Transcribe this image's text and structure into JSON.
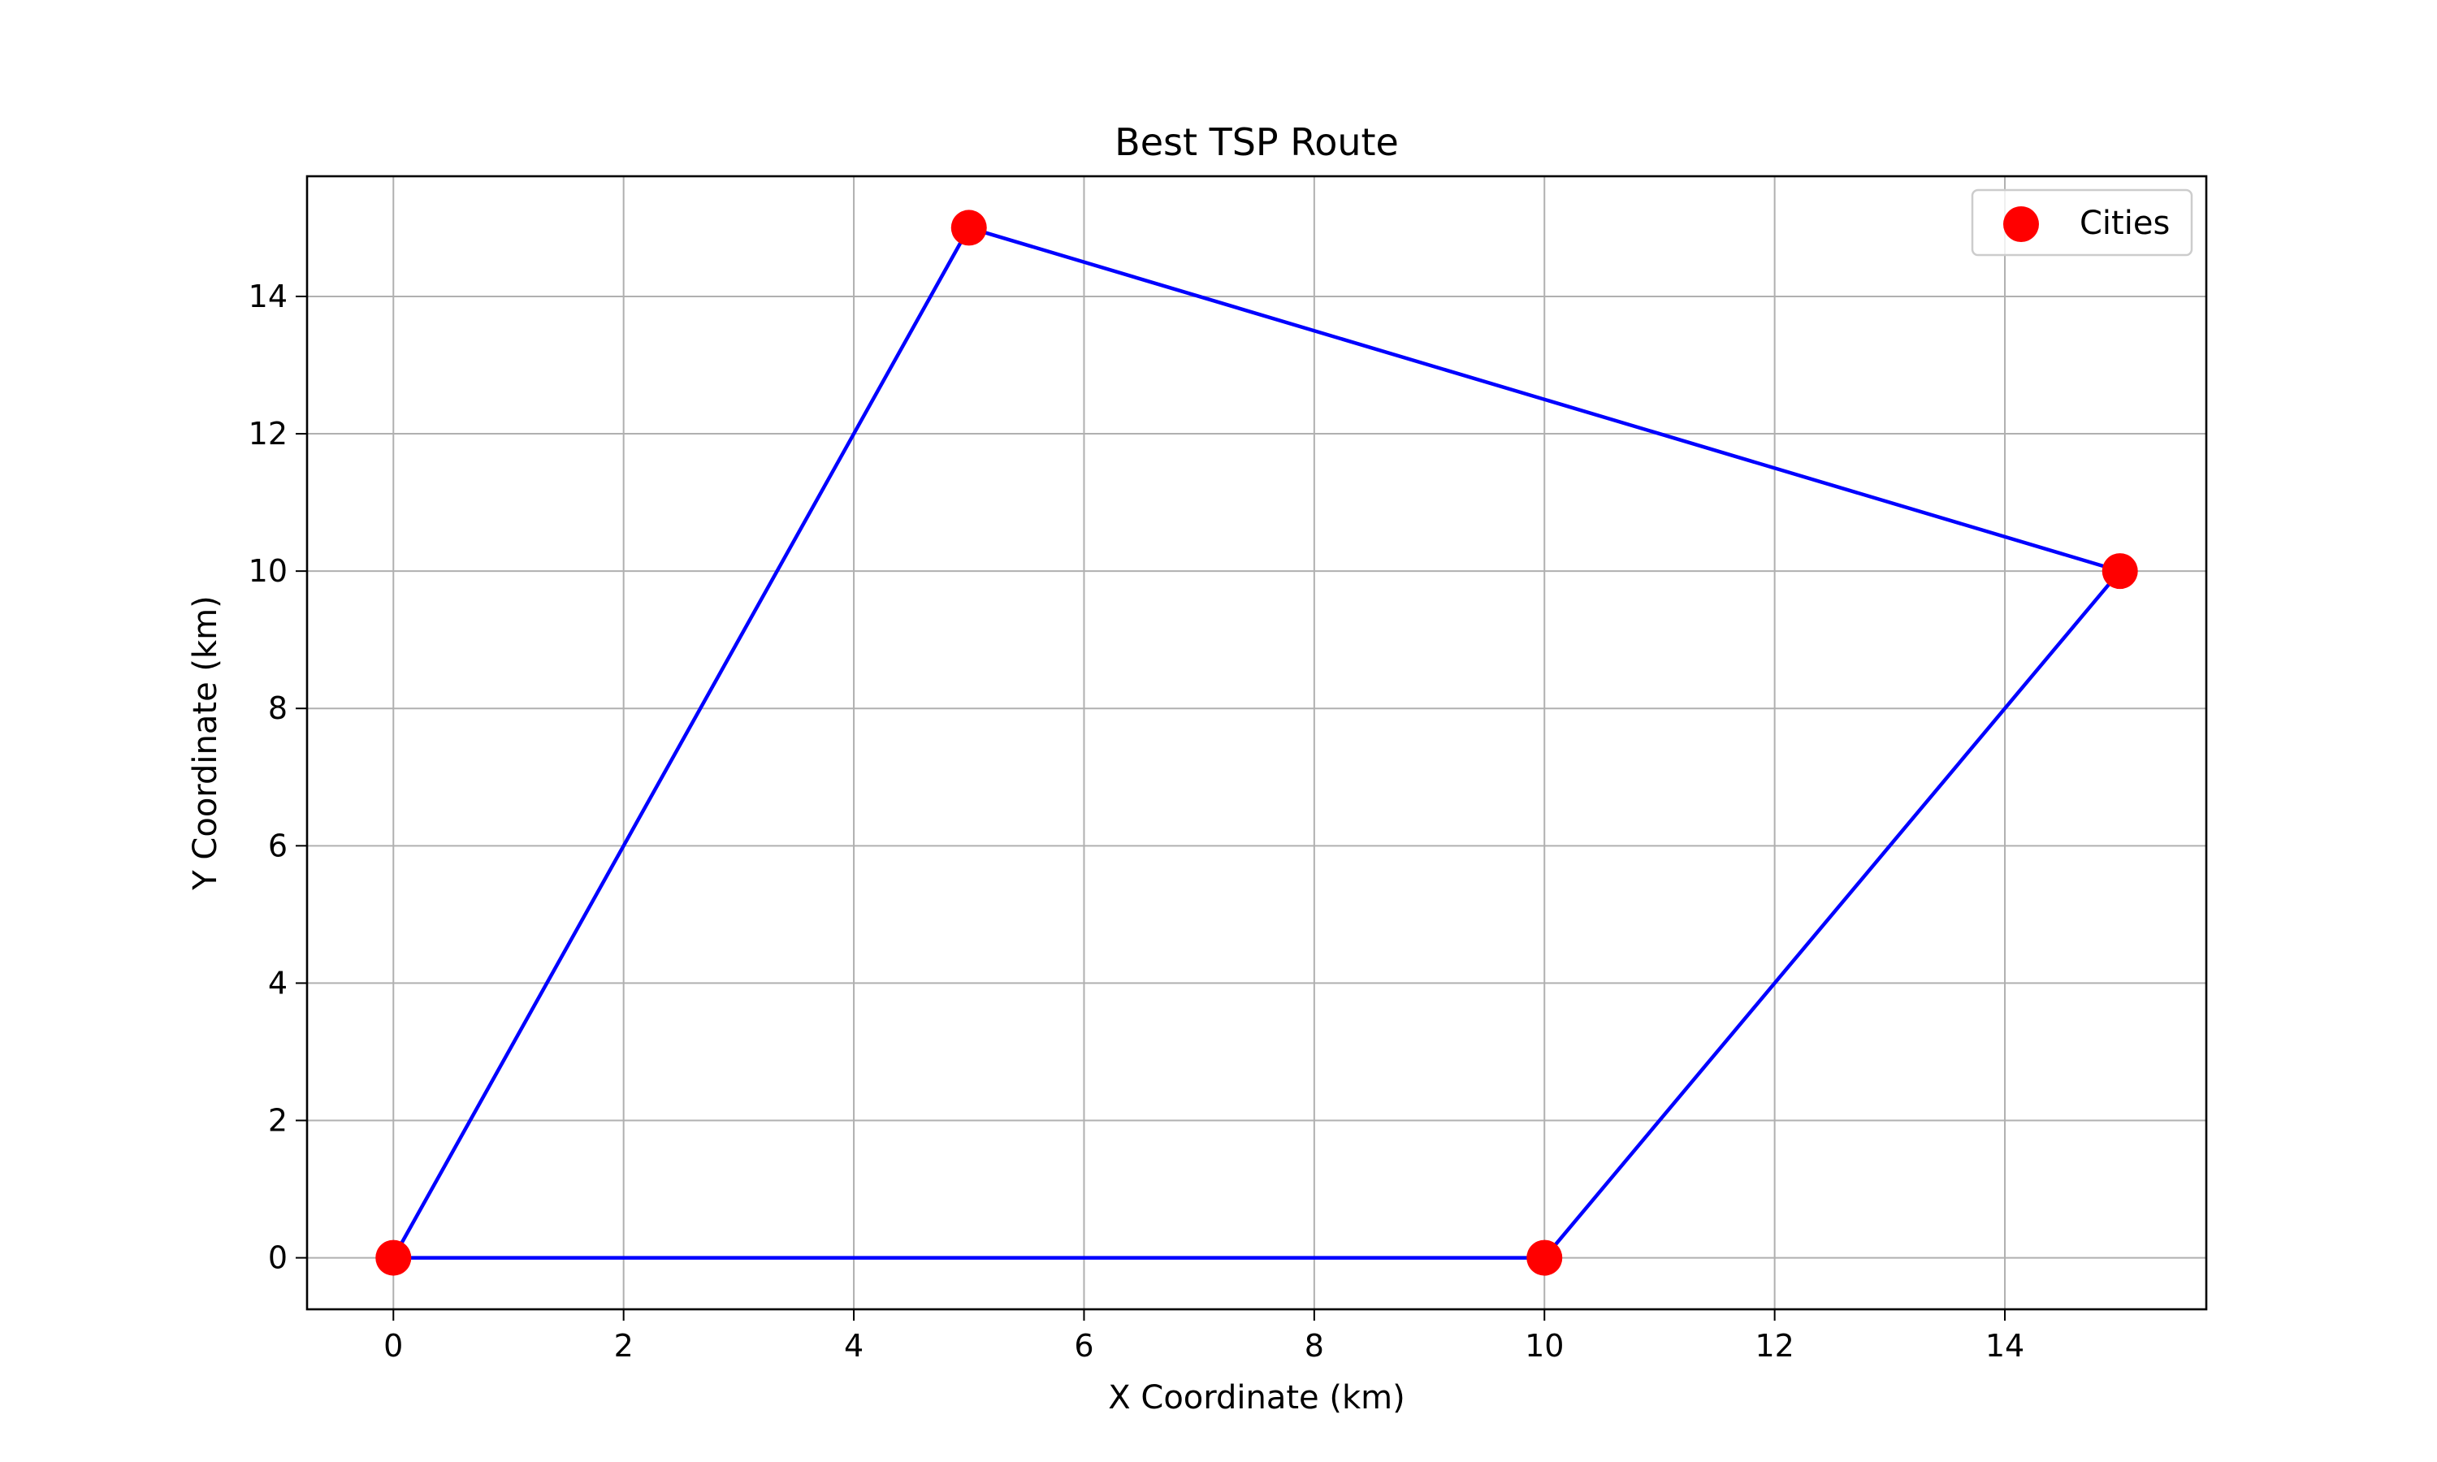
{
  "chart_data": {
    "type": "line",
    "title": "Best TSP Route",
    "xlabel": "X Coordinate (km)",
    "ylabel": "Y Coordinate (km)",
    "xlim": [
      -0.75,
      15.75
    ],
    "ylim": [
      -0.75,
      15.75
    ],
    "xticks": [
      0,
      2,
      4,
      6,
      8,
      10,
      12,
      14
    ],
    "yticks": [
      0,
      2,
      4,
      6,
      8,
      10,
      12,
      14
    ],
    "grid": true,
    "legend_position": "upper right",
    "series": [
      {
        "name": "Cities",
        "kind": "scatter",
        "color": "#ff0000",
        "points": [
          {
            "x": 0,
            "y": 0
          },
          {
            "x": 5,
            "y": 15
          },
          {
            "x": 15,
            "y": 10
          },
          {
            "x": 10,
            "y": 0
          }
        ]
      },
      {
        "kind": "line",
        "color": "#0000ff",
        "points": [
          {
            "x": 0,
            "y": 0
          },
          {
            "x": 5,
            "y": 15
          },
          {
            "x": 15,
            "y": 10
          },
          {
            "x": 10,
            "y": 0
          },
          {
            "x": 0,
            "y": 0
          }
        ]
      }
    ]
  }
}
